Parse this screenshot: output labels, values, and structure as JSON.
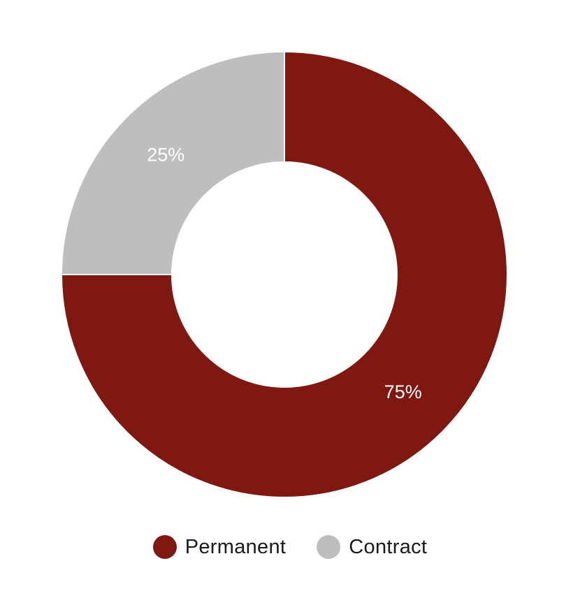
{
  "chart_data": {
    "type": "pie",
    "variant": "donut",
    "labels": [
      "Permanent",
      "Contract"
    ],
    "values": [
      75,
      25
    ],
    "data_labels": [
      "75%",
      "25%"
    ],
    "colors": [
      "#801812",
      "#bebebe"
    ],
    "legend_position": "bottom",
    "start": "top, clockwise"
  },
  "legend": {
    "items": [
      {
        "label": "Permanent",
        "color": "#801812"
      },
      {
        "label": "Contract",
        "color": "#bebebe"
      }
    ]
  }
}
